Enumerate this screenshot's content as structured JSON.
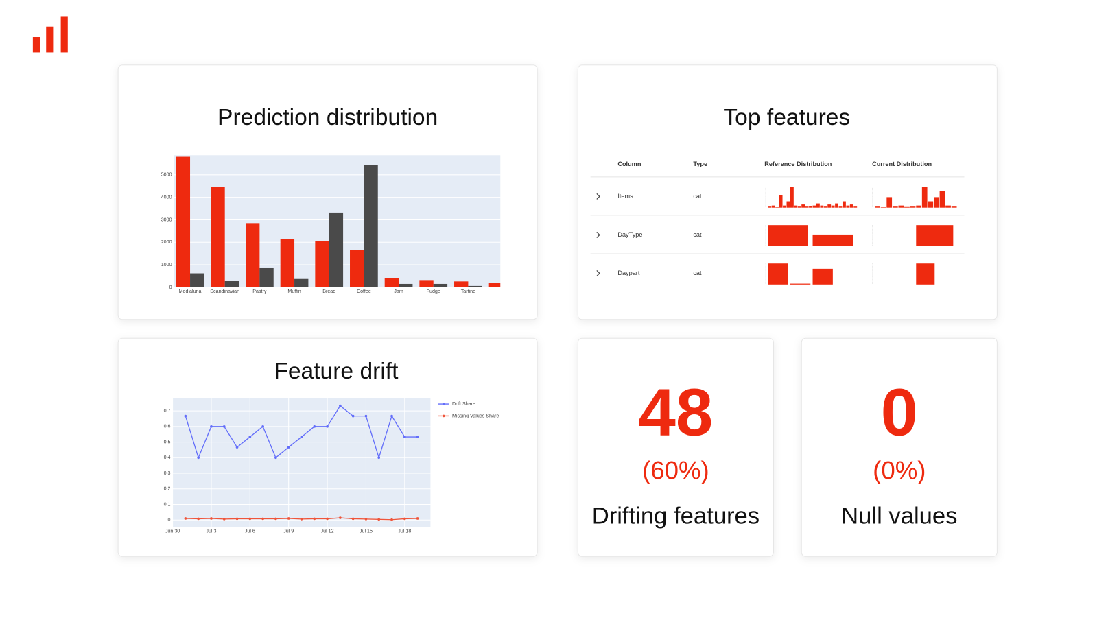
{
  "chart_data": [
    {
      "type": "bar",
      "title": "Prediction distribution",
      "categories": [
        "Medialuna",
        "Scandinavian",
        "Pastry",
        "Muffin",
        "Bread",
        "Coffee",
        "Jam",
        "Fudge",
        "Tartine",
        null
      ],
      "series": [
        {
          "color": "#ee2a0f",
          "values": [
            5800,
            4450,
            2850,
            2150,
            2050,
            1650,
            400,
            320,
            260,
            180
          ]
        },
        {
          "color": "#4a4a4a",
          "values": [
            620,
            280,
            850,
            370,
            3320,
            5450,
            150,
            150,
            60,
            null
          ]
        }
      ],
      "ylim": [
        0,
        5870
      ],
      "yticks": [
        0,
        1000,
        2000,
        3000,
        4000,
        5000
      ],
      "grid": true
    },
    {
      "type": "line",
      "title": "Feature drift",
      "x": [
        "Jul 1",
        "Jul 2",
        "Jul 3",
        "Jul 4",
        "Jul 5",
        "Jul 6",
        "Jul 7",
        "Jul 8",
        "Jul 9",
        "Jul 10",
        "Jul 11",
        "Jul 12",
        "Jul 13",
        "Jul 14",
        "Jul 15",
        "Jul 16",
        "Jul 17",
        "Jul 18",
        "Jul 19"
      ],
      "series": [
        {
          "name": "Drift Share",
          "color": "#636efa",
          "values": [
            0.667,
            0.4,
            0.6,
            0.6,
            0.467,
            0.533,
            0.6,
            0.4,
            0.467,
            0.533,
            0.6,
            0.6,
            0.733,
            0.667,
            0.667,
            0.4,
            0.667,
            0.533,
            0.533
          ]
        },
        {
          "name": "Missing Values Share",
          "color": "#ef553b",
          "values": [
            0.01,
            0.008,
            0.01,
            0.006,
            0.008,
            0.008,
            0.008,
            0.008,
            0.01,
            0.006,
            0.008,
            0.008,
            0.014,
            0.008,
            0.006,
            0.004,
            0.002,
            0.008,
            0.01
          ]
        }
      ],
      "xlim": [
        "Jun 30",
        "Jul 20"
      ],
      "xticks": [
        "Jun 30",
        "Jul 3",
        "Jul 6",
        "Jul 9",
        "Jul 12",
        "Jul 15",
        "Jul 18"
      ],
      "ylim": [
        -0.045,
        0.78
      ],
      "yticks": [
        0,
        0.1,
        0.2,
        0.3,
        0.4,
        0.5,
        0.6,
        0.7
      ],
      "grid": true
    }
  ],
  "top_features": {
    "title": "Top features",
    "color": "#ee2a0f",
    "columns": [
      "Column",
      "Type",
      "Reference Distribution",
      "Current Distribution"
    ],
    "rows": [
      {
        "column": "Items",
        "type": "cat",
        "reference": [
          0.05,
          0.1,
          0.02,
          0.6,
          0.1,
          0.3,
          1,
          0.1,
          0.05,
          0.15,
          0.05,
          0.08,
          0.1,
          0.2,
          0.1,
          0.05,
          0.15,
          0.1,
          0.2,
          0.05,
          0.3,
          0.1,
          0.15,
          0.05
        ],
        "current": [
          0.05,
          0.02,
          0.5,
          0.05,
          0.1,
          0.03,
          0.05,
          0.1,
          1,
          0.3,
          0.5,
          0.8,
          0.1,
          0.05
        ]
      },
      {
        "column": "DayType",
        "type": "cat",
        "reference": [
          1,
          0.55
        ],
        "current": [
          0,
          1
        ]
      },
      {
        "column": "Daypart",
        "type": "cat",
        "reference": [
          1,
          0.04,
          0.75,
          0
        ],
        "current": [
          0,
          0,
          1,
          0
        ]
      }
    ]
  },
  "stats": [
    {
      "value": "48",
      "share": "(60%)",
      "label": "Drifting features"
    },
    {
      "value": "0",
      "share": "(0%)",
      "label": "Null values"
    }
  ]
}
